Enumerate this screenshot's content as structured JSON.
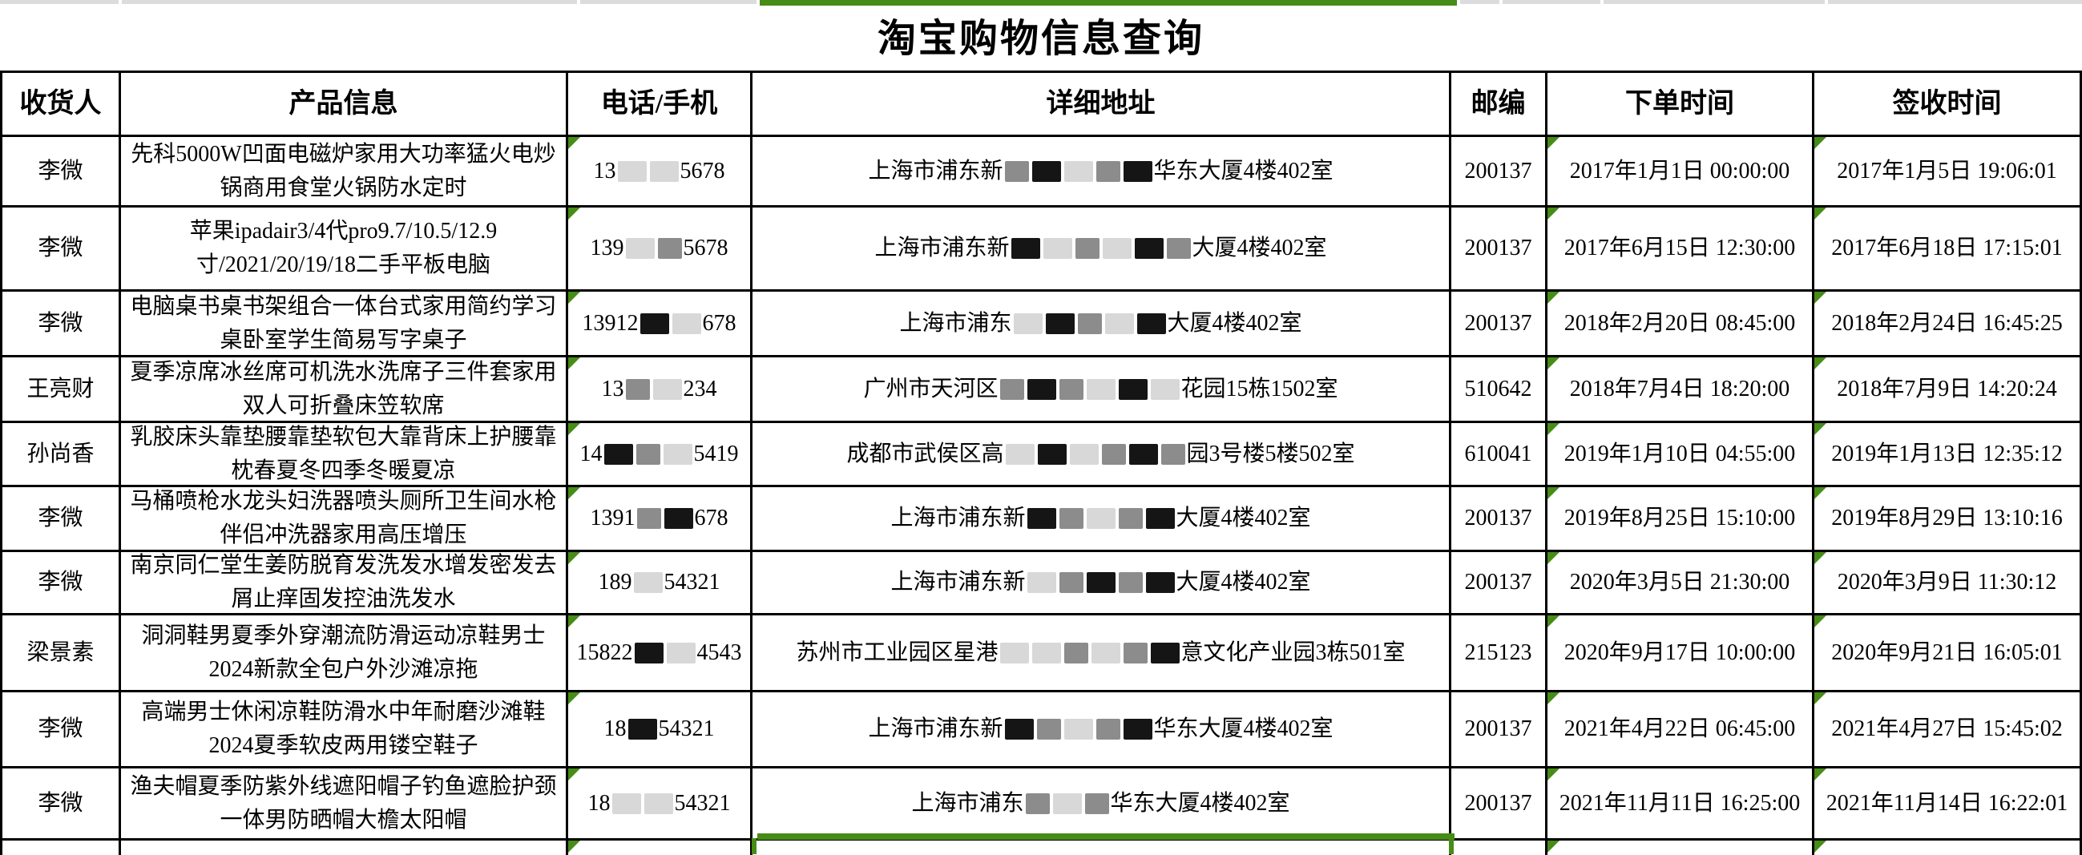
{
  "app": {
    "title": "淘宝购物信息查询"
  },
  "colors": {
    "selection_green": "#468c17",
    "strip_gray": "#dcdcdc",
    "table_border": "#000000"
  },
  "table": {
    "columns": [
      {
        "key": "recipient",
        "label": "收货人"
      },
      {
        "key": "product",
        "label": "产品信息"
      },
      {
        "key": "phone",
        "label": "电话/手机"
      },
      {
        "key": "address",
        "label": "详细地址"
      },
      {
        "key": "zip",
        "label": "邮编"
      },
      {
        "key": "order_time",
        "label": "下单时间"
      },
      {
        "key": "sign_time",
        "label": "签收时间"
      }
    ],
    "rows": [
      {
        "recipient": "李微",
        "product": "先科5000W凹面电磁炉家用大功率猛火电炒锅商用食堂火锅防水定时",
        "phone_prefix": "13",
        "phone_redact": [
          "light",
          "light"
        ],
        "phone_suffix": "5678",
        "addr_prefix": "上海市浦东新",
        "addr_redact": [
          "mid",
          "dark",
          "light",
          "mid",
          "dark"
        ],
        "addr_suffix": "华东大厦4楼402室",
        "zip": "200137",
        "order_time": "2017年1月1日 00:00:00",
        "sign_time": "2017年1月5日 19:06:01"
      },
      {
        "recipient": "李微",
        "product": "苹果ipadair3/4代pro9.7/10.5/12.9寸/2021/20/19/18二手平板电脑",
        "phone_prefix": "139",
        "phone_redact": [
          "light",
          "mid"
        ],
        "phone_suffix": "5678",
        "addr_prefix": "上海市浦东新",
        "addr_redact": [
          "dark",
          "light",
          "mid",
          "light",
          "dark",
          "mid"
        ],
        "addr_suffix": "大厦4楼402室",
        "zip": "200137",
        "order_time": "2017年6月15日 12:30:00",
        "sign_time": "2017年6月18日 17:15:01"
      },
      {
        "recipient": "李微",
        "product": "电脑桌书桌书架组合一体台式家用简约学习桌卧室学生简易写字桌子",
        "phone_prefix": "13912",
        "phone_redact": [
          "dark",
          "light"
        ],
        "phone_suffix": "678",
        "addr_prefix": "上海市浦东",
        "addr_redact": [
          "light",
          "dark",
          "mid",
          "light",
          "dark"
        ],
        "addr_suffix": "大厦4楼402室",
        "zip": "200137",
        "order_time": "2018年2月20日 08:45:00",
        "sign_time": "2018年2月24日 16:45:25"
      },
      {
        "recipient": "王亮财",
        "product": "夏季凉席冰丝席可机洗水洗席子三件套家用双人可折叠床笠软席",
        "phone_prefix": "13",
        "phone_redact": [
          "mid",
          "light"
        ],
        "phone_suffix": "234",
        "addr_prefix": "广州市天河区",
        "addr_redact": [
          "mid",
          "dark",
          "mid",
          "light",
          "dark",
          "light"
        ],
        "addr_suffix": "花园15栋1502室",
        "zip": "510642",
        "order_time": "2018年7月4日 18:20:00",
        "sign_time": "2018年7月9日 14:20:24"
      },
      {
        "recipient": "孙尚香",
        "product": "乳胶床头靠垫腰靠垫软包大靠背床上护腰靠枕春夏冬四季冬暖夏凉",
        "phone_prefix": "14",
        "phone_redact": [
          "dark",
          "mid",
          "light"
        ],
        "phone_suffix": "5419",
        "addr_prefix": "成都市武侯区高",
        "addr_redact": [
          "light",
          "dark",
          "light",
          "mid",
          "dark",
          "mid"
        ],
        "addr_suffix": "园3号楼5楼502室",
        "zip": "610041",
        "order_time": "2019年1月10日 04:55:00",
        "sign_time": "2019年1月13日 12:35:12"
      },
      {
        "recipient": "李微",
        "product": "马桶喷枪水龙头妇洗器喷头厕所卫生间水枪伴侣冲洗器家用高压增压",
        "phone_prefix": "1391",
        "phone_redact": [
          "mid",
          "dark"
        ],
        "phone_suffix": "678",
        "addr_prefix": "上海市浦东新",
        "addr_redact": [
          "dark",
          "mid",
          "light",
          "mid",
          "dark"
        ],
        "addr_suffix": "大厦4楼402室",
        "zip": "200137",
        "order_time": "2019年8月25日 15:10:00",
        "sign_time": "2019年8月29日 13:10:16"
      },
      {
        "recipient": "李微",
        "product": "南京同仁堂生姜防脱育发洗发水增发密发去屑止痒固发控油洗发水",
        "phone_prefix": "189",
        "phone_redact": [
          "light"
        ],
        "phone_suffix": "54321",
        "addr_prefix": "上海市浦东新",
        "addr_redact": [
          "light",
          "mid",
          "dark",
          "mid",
          "dark"
        ],
        "addr_suffix": "大厦4楼402室",
        "zip": "200137",
        "order_time": "2020年3月5日 21:30:00",
        "sign_time": "2020年3月9日 11:30:12"
      },
      {
        "recipient": "梁景素",
        "product": "洞洞鞋男夏季外穿潮流防滑运动凉鞋男士2024新款全包户外沙滩凉拖",
        "phone_prefix": "15822",
        "phone_redact": [
          "dark",
          "light"
        ],
        "phone_suffix": "4543",
        "addr_prefix": "苏州市工业园区星港",
        "addr_redact": [
          "light",
          "light",
          "mid",
          "light",
          "mid",
          "dark"
        ],
        "addr_suffix": "意文化产业园3栋501室",
        "zip": "215123",
        "order_time": "2020年9月17日 10:00:00",
        "sign_time": "2020年9月21日 16:05:01"
      },
      {
        "recipient": "李微",
        "product": "高端男士休闲凉鞋防滑水中年耐磨沙滩鞋2024夏季软皮两用镂空鞋子",
        "phone_prefix": "18",
        "phone_redact": [
          "dark"
        ],
        "phone_suffix": "54321",
        "addr_prefix": "上海市浦东新",
        "addr_redact": [
          "dark",
          "mid",
          "light",
          "mid",
          "dark"
        ],
        "addr_suffix": "华东大厦4楼402室",
        "zip": "200137",
        "order_time": "2021年4月22日 06:45:00",
        "sign_time": "2021年4月27日 15:45:02"
      },
      {
        "recipient": "李微",
        "product": "渔夫帽夏季防紫外线遮阳帽子钓鱼遮脸护颈一体男防晒帽大檐太阳帽",
        "phone_prefix": "18",
        "phone_redact": [
          "light",
          "light"
        ],
        "phone_suffix": "54321",
        "addr_prefix": "上海市浦东",
        "addr_redact": [
          "mid",
          "light",
          "mid"
        ],
        "addr_suffix": "华东大厦4楼402室",
        "zip": "200137",
        "order_time": "2021年11月11日 16:25:00",
        "sign_time": "2021年11月14日 16:22:01"
      }
    ]
  }
}
